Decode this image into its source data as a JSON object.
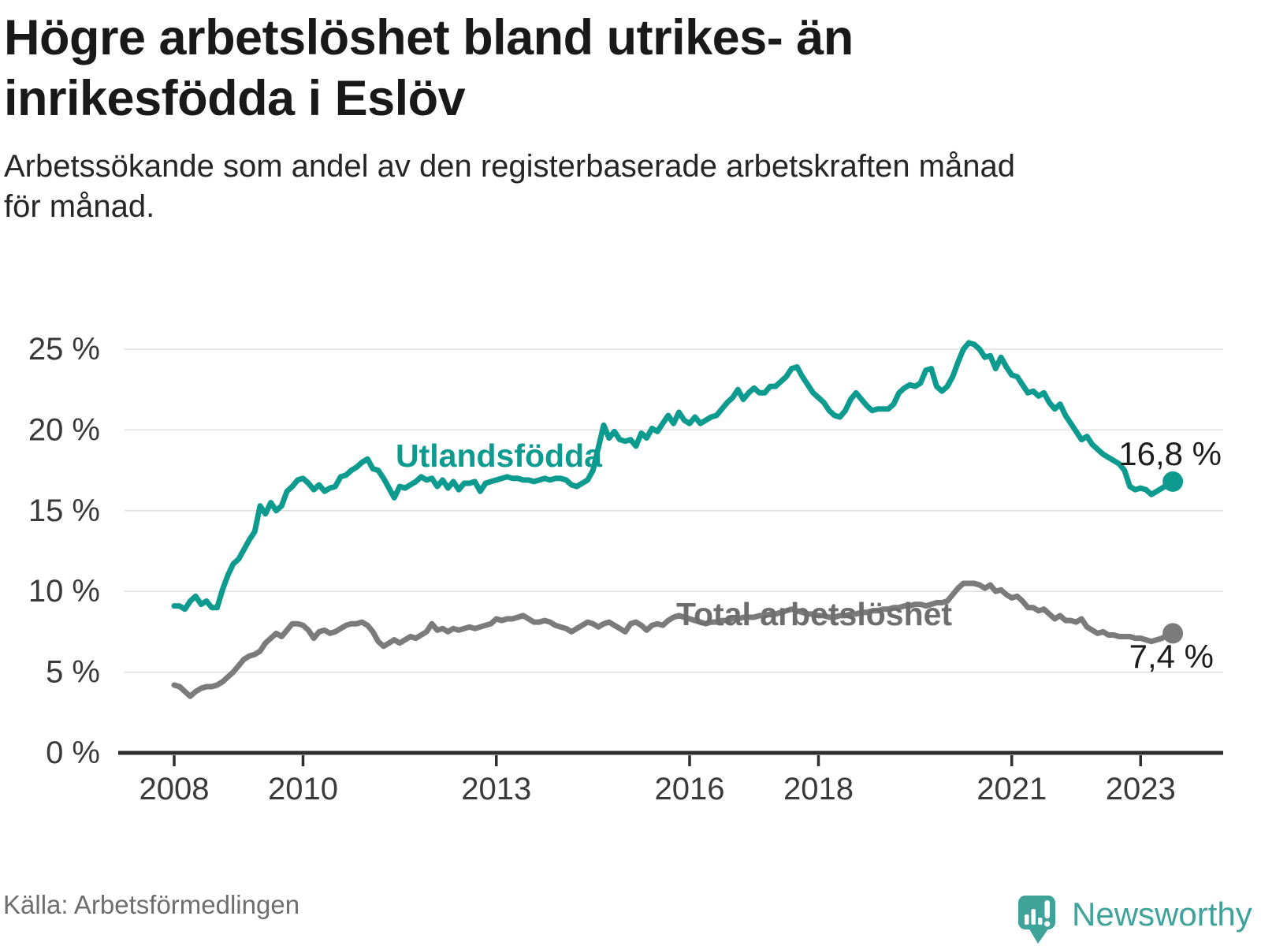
{
  "header": {
    "title_lines": [
      "Högre arbetslöshet bland utrikes- än",
      "inrikesfödda i Eslöv"
    ],
    "subtitle_lines": [
      "Arbetssökande som andel av den registerbaserade arbetskraften månad",
      "för månad."
    ]
  },
  "footer": {
    "source": "Källa: Arbetsförmedlingen",
    "brand": "Newsworthy"
  },
  "colors": {
    "teal_line": "#0d9b90",
    "gray_line": "#7b7b7b",
    "gray_label": "#6e6e6e",
    "brand_teal": "#3fa39a",
    "axis_text": "#3a3a3a",
    "end_label_text": "#1c1c1c"
  },
  "chart_data": {
    "type": "line",
    "title": "Högre arbetslöshet bland utrikes- än inrikesfödda i Eslöv",
    "subtitle": "Arbetssökande som andel av den registerbaserade arbetskraften månad för månad.",
    "xlabel": "",
    "ylabel": "",
    "x_start_year": 2008,
    "x_interval": "monthly",
    "x_end": "2023-07",
    "ylim": [
      0,
      26.5
    ],
    "grid": "horizontal",
    "legend_position": "inline-labels",
    "y_ticks": [
      {
        "value": 0,
        "label": "0 %"
      },
      {
        "value": 5,
        "label": "5 %"
      },
      {
        "value": 10,
        "label": "10 %"
      },
      {
        "value": 15,
        "label": "15 %"
      },
      {
        "value": 20,
        "label": "20 %"
      },
      {
        "value": 25,
        "label": "25 %"
      }
    ],
    "x_ticks": [
      {
        "year": 2008,
        "label": "2008"
      },
      {
        "year": 2010,
        "label": "2010"
      },
      {
        "year": 2013,
        "label": "2013"
      },
      {
        "year": 2016,
        "label": "2016"
      },
      {
        "year": 2018,
        "label": "2018"
      },
      {
        "year": 2021,
        "label": "2021"
      },
      {
        "year": 2023,
        "label": "2023"
      }
    ],
    "series": [
      {
        "id": "utlandsfodda",
        "name": "Utlandsfödda",
        "color": "#0d9b90",
        "label_color": "#0d9b90",
        "end_label": "16,8 %",
        "end_value": 16.8,
        "values": [
          9.1,
          9.1,
          8.9,
          9.4,
          9.7,
          9.2,
          9.4,
          9.0,
          9.0,
          10.1,
          11.0,
          11.7,
          12.0,
          12.6,
          13.2,
          13.7,
          15.3,
          14.8,
          15.5,
          15.0,
          15.3,
          16.2,
          16.5,
          16.9,
          17.0,
          16.7,
          16.3,
          16.6,
          16.2,
          16.4,
          16.5,
          17.1,
          17.2,
          17.5,
          17.7,
          18.0,
          18.2,
          17.6,
          17.5,
          17.0,
          16.4,
          15.8,
          16.5,
          16.4,
          16.6,
          16.8,
          17.1,
          16.9,
          17.0,
          16.5,
          16.9,
          16.4,
          16.8,
          16.3,
          16.7,
          16.7,
          16.8,
          16.2,
          16.7,
          16.8,
          16.9,
          17.0,
          17.1,
          17.0,
          17.0,
          16.9,
          16.9,
          16.8,
          16.9,
          17.0,
          16.9,
          17.0,
          17.0,
          16.9,
          16.6,
          16.5,
          16.7,
          16.9,
          17.5,
          18.9,
          20.3,
          19.5,
          19.9,
          19.4,
          19.3,
          19.4,
          19.0,
          19.8,
          19.5,
          20.1,
          19.9,
          20.4,
          20.9,
          20.4,
          21.1,
          20.6,
          20.4,
          20.8,
          20.4,
          20.6,
          20.8,
          20.9,
          21.3,
          21.7,
          22.0,
          22.5,
          21.9,
          22.3,
          22.6,
          22.3,
          22.3,
          22.7,
          22.7,
          23.0,
          23.3,
          23.8,
          23.9,
          23.3,
          22.8,
          22.3,
          22.0,
          21.7,
          21.2,
          20.9,
          20.8,
          21.2,
          21.9,
          22.3,
          21.9,
          21.5,
          21.2,
          21.3,
          21.3,
          21.3,
          21.6,
          22.3,
          22.6,
          22.8,
          22.7,
          22.9,
          23.7,
          23.8,
          22.7,
          22.4,
          22.7,
          23.3,
          24.2,
          25.0,
          25.4,
          25.3,
          25.0,
          24.5,
          24.6,
          23.8,
          24.5,
          23.9,
          23.4,
          23.3,
          22.8,
          22.3,
          22.4,
          22.1,
          22.3,
          21.7,
          21.3,
          21.6,
          20.9,
          20.4,
          19.9,
          19.4,
          19.6,
          19.1,
          18.8,
          18.5,
          18.3,
          18.1,
          17.9,
          17.5,
          16.5,
          16.3,
          16.4,
          16.3,
          16.0,
          16.2,
          16.4,
          16.6,
          16.8
        ]
      },
      {
        "id": "total-arbetsloshet",
        "name": "Total arbetslöshet",
        "color": "#7b7b7b",
        "label_color": "#6e6e6e",
        "end_label": "7,4 %",
        "end_value": 7.4,
        "values": [
          4.2,
          4.1,
          3.8,
          3.5,
          3.8,
          4.0,
          4.1,
          4.1,
          4.2,
          4.4,
          4.7,
          5.0,
          5.4,
          5.8,
          6.0,
          6.1,
          6.3,
          6.8,
          7.1,
          7.4,
          7.2,
          7.6,
          8.0,
          8.0,
          7.9,
          7.6,
          7.1,
          7.5,
          7.6,
          7.4,
          7.5,
          7.7,
          7.9,
          8.0,
          8.0,
          8.1,
          7.9,
          7.5,
          6.9,
          6.6,
          6.8,
          7.0,
          6.8,
          7.0,
          7.2,
          7.1,
          7.3,
          7.5,
          8.0,
          7.6,
          7.7,
          7.5,
          7.7,
          7.6,
          7.7,
          7.8,
          7.7,
          7.8,
          7.9,
          8.0,
          8.3,
          8.2,
          8.3,
          8.3,
          8.4,
          8.5,
          8.3,
          8.1,
          8.1,
          8.2,
          8.1,
          7.9,
          7.8,
          7.7,
          7.5,
          7.7,
          7.9,
          8.1,
          8.0,
          7.8,
          8.0,
          8.1,
          7.9,
          7.7,
          7.5,
          8.0,
          8.1,
          7.9,
          7.6,
          7.9,
          8.0,
          7.9,
          8.2,
          8.4,
          8.5,
          8.4,
          8.3,
          8.2,
          8.1,
          8.0,
          8.1,
          8.1,
          8.2,
          8.2,
          8.3,
          8.3,
          8.4,
          8.4,
          8.4,
          8.5,
          8.5,
          8.6,
          8.6,
          8.7,
          8.8,
          8.9,
          8.8,
          8.7,
          8.6,
          8.6,
          8.5,
          8.5,
          8.4,
          8.4,
          8.5,
          8.5,
          8.6,
          8.6,
          8.7,
          8.7,
          8.8,
          8.8,
          8.9,
          8.9,
          9.0,
          9.0,
          9.1,
          9.1,
          9.2,
          9.2,
          9.1,
          9.2,
          9.3,
          9.3,
          9.4,
          9.8,
          10.2,
          10.5,
          10.5,
          10.5,
          10.4,
          10.2,
          10.4,
          10.0,
          10.1,
          9.8,
          9.6,
          9.7,
          9.4,
          9.0,
          9.0,
          8.8,
          8.9,
          8.6,
          8.3,
          8.5,
          8.2,
          8.2,
          8.1,
          8.3,
          7.8,
          7.6,
          7.4,
          7.5,
          7.3,
          7.3,
          7.2,
          7.2,
          7.2,
          7.1,
          7.1,
          7.0,
          6.9,
          7.0,
          7.1,
          7.3,
          7.4
        ]
      }
    ]
  }
}
